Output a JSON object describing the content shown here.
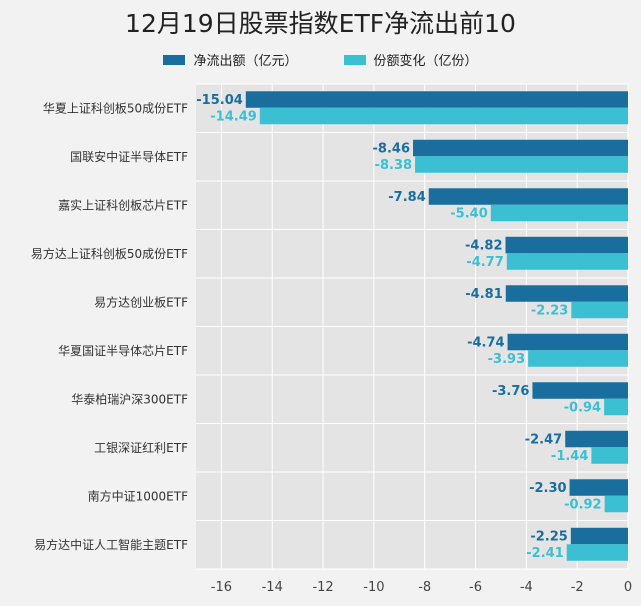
{
  "chart_data": {
    "type": "bar",
    "title": "12月19日股票指数ETF净流出前10",
    "categories": [
      "华夏上证科创板50成份ETF",
      "国联安中证半导体ETF",
      "嘉实上证科创板芯片ETF",
      "易方达上证科创板50成份ETF",
      "易方达创业板ETF",
      "华夏国证半导体芯片ETF",
      "华泰柏瑞沪深300ETF",
      "工银深证红利ETF",
      "南方中证1000ETF",
      "易方达中证人工智能主题ETF"
    ],
    "series": [
      {
        "name": "净流出额（亿元）",
        "color": "#1a6e9e",
        "values": [
          -15.04,
          -8.46,
          -7.84,
          -4.82,
          -4.81,
          -4.74,
          -3.76,
          -2.47,
          -2.3,
          -2.25
        ],
        "labels": [
          "-15.04",
          "-8.46",
          "-7.84",
          "-4.82",
          "-4.81",
          "-4.74",
          "-3.76",
          "-2.47",
          "-2.30",
          "-2.25"
        ]
      },
      {
        "name": "份额变化（亿份）",
        "color": "#3bbfd2",
        "values": [
          -14.49,
          -8.38,
          -5.4,
          -4.77,
          -2.23,
          -3.93,
          -0.94,
          -1.44,
          -0.92,
          -2.41
        ],
        "labels": [
          "-14.49",
          "-8.38",
          "-5.40",
          "-4.77",
          "-2.23",
          "-3.93",
          "-0.94",
          "-1.44",
          "-0.92",
          "-2.41"
        ]
      }
    ],
    "xlim": [
      -17,
      0
    ],
    "xticks": [
      -16,
      -14,
      -12,
      -10,
      -8,
      -6,
      -4,
      -2,
      0
    ],
    "orientation": "horizontal",
    "grid": true,
    "legend_position": "top",
    "plot_background": "#e4e4e4"
  }
}
